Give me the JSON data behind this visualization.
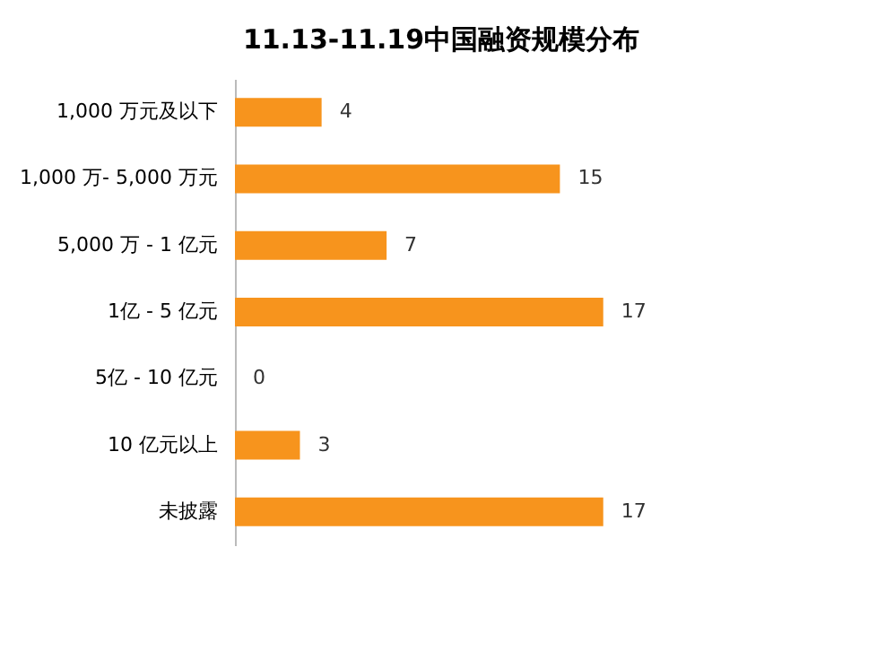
{
  "chart_data": {
    "type": "bar",
    "orientation": "horizontal",
    "title": "11.13-11.19中国融资规模分布",
    "categories": [
      "1,000 万元及以下",
      "1,000 万- 5,000 万元",
      "5,000 万 - 1 亿元",
      "1亿 - 5 亿元",
      "5亿 - 10 亿元",
      "10 亿元以上",
      "未披露"
    ],
    "values": [
      4,
      15,
      7,
      17,
      0,
      3,
      17
    ],
    "color": "#f7941d",
    "data_labels": true
  }
}
